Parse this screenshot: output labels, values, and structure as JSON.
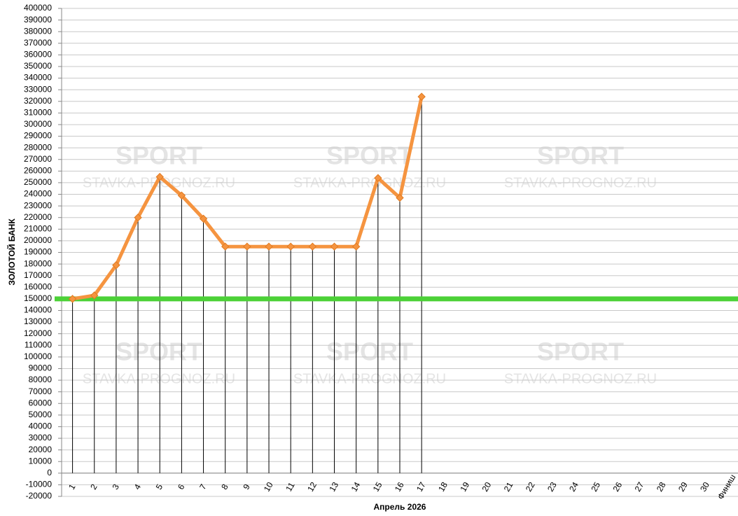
{
  "chart_data": {
    "type": "line",
    "x_label": "Апрель 2026",
    "y_label": "ЗОЛОТОЙ БАНК",
    "watermark": [
      "SPORT",
      "STAVKA-PROGNOZ.RU"
    ],
    "categories": [
      "1",
      "2",
      "3",
      "4",
      "5",
      "6",
      "7",
      "8",
      "9",
      "10",
      "11",
      "12",
      "13",
      "14",
      "15",
      "16",
      "17",
      "18",
      "19",
      "20",
      "21",
      "22",
      "23",
      "24",
      "25",
      "26",
      "27",
      "28",
      "29",
      "30",
      "Финиш"
    ],
    "series": [
      {
        "name": null,
        "color": "#f59440",
        "values": [
          150000,
          153000,
          179000,
          220000,
          255000,
          239000,
          219000,
          195000,
          195000,
          195000,
          195000,
          195000,
          195000,
          195000,
          254000,
          237000,
          324000,
          null,
          null,
          null,
          null,
          null,
          null,
          null,
          null,
          null,
          null,
          null,
          null,
          null,
          null
        ]
      }
    ],
    "reference_line": {
      "value": 150000,
      "color": "#4cd137"
    },
    "drop_lines": true,
    "ylim": [
      -20000,
      400000
    ],
    "yticks": [
      -20000,
      -10000,
      0,
      10000,
      20000,
      30000,
      40000,
      50000,
      60000,
      70000,
      80000,
      90000,
      100000,
      110000,
      120000,
      130000,
      140000,
      150000,
      160000,
      170000,
      180000,
      190000,
      200000,
      210000,
      220000,
      230000,
      240000,
      250000,
      260000,
      270000,
      280000,
      290000,
      300000,
      310000,
      320000,
      330000,
      340000,
      350000,
      360000,
      370000,
      380000,
      390000,
      400000
    ],
    "grid": true
  }
}
